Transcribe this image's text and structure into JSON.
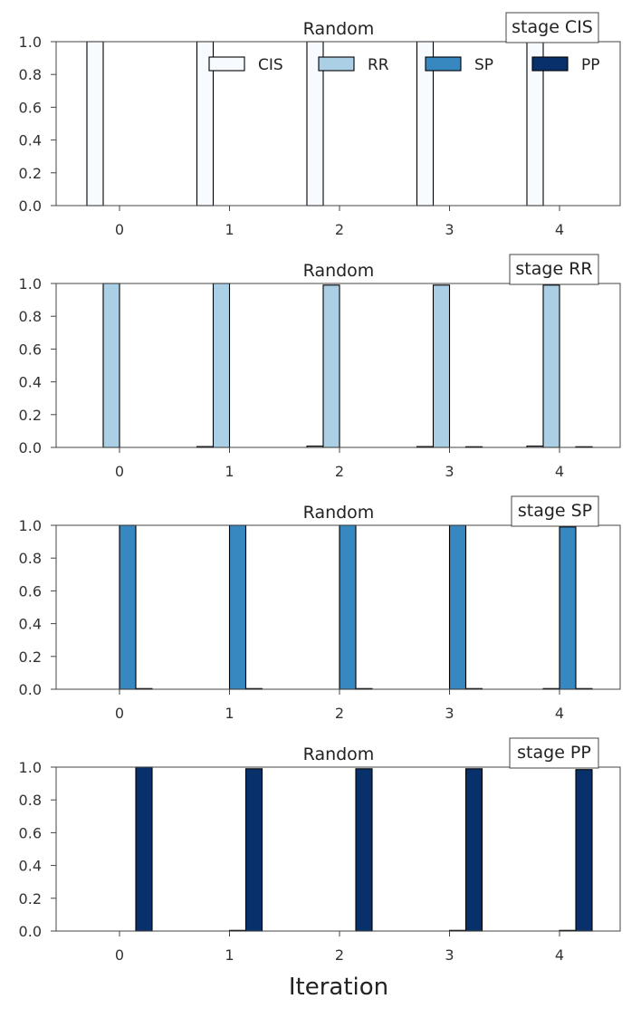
{
  "chart_data": [
    {
      "type": "bar",
      "title": "Random",
      "annotation": "stage CIS",
      "categories": [
        "0",
        "1",
        "2",
        "3",
        "4"
      ],
      "ylim": [
        0,
        1.0
      ],
      "yticks": [
        "0.0",
        "0.2",
        "0.4",
        "0.6",
        "0.8",
        "1.0"
      ],
      "grid": false,
      "legend_position": "top-right",
      "series": [
        {
          "name": "CIS",
          "color": "#f7fbff",
          "values": [
            1.0,
            1.0,
            1.0,
            1.0,
            1.0
          ]
        },
        {
          "name": "RR",
          "color": "#abd0e6",
          "values": [
            0,
            0,
            0,
            0,
            0
          ]
        },
        {
          "name": "SP",
          "color": "#3787c0",
          "values": [
            0,
            0,
            0,
            0,
            0
          ]
        },
        {
          "name": "PP",
          "color": "#08306b",
          "values": [
            0,
            0,
            0,
            0,
            0
          ]
        }
      ]
    },
    {
      "type": "bar",
      "title": "Random",
      "annotation": "stage RR",
      "categories": [
        "0",
        "1",
        "2",
        "3",
        "4"
      ],
      "ylim": [
        0,
        1.0
      ],
      "yticks": [
        "0.0",
        "0.2",
        "0.4",
        "0.6",
        "0.8",
        "1.0"
      ],
      "grid": false,
      "series": [
        {
          "name": "CIS",
          "color": "#f7fbff",
          "values": [
            0.0,
            0.005,
            0.008,
            0.005,
            0.008
          ]
        },
        {
          "name": "RR",
          "color": "#abd0e6",
          "values": [
            1.0,
            1.0,
            0.99,
            0.99,
            0.99
          ]
        },
        {
          "name": "SP",
          "color": "#3787c0",
          "values": [
            0,
            0,
            0,
            0,
            0
          ]
        },
        {
          "name": "PP",
          "color": "#08306b",
          "values": [
            0.0,
            0.0,
            0.0,
            0.004,
            0.004
          ]
        }
      ]
    },
    {
      "type": "bar",
      "title": "Random",
      "annotation": "stage SP",
      "categories": [
        "0",
        "1",
        "2",
        "3",
        "4"
      ],
      "ylim": [
        0,
        1.0
      ],
      "yticks": [
        "0.0",
        "0.2",
        "0.4",
        "0.6",
        "0.8",
        "1.0"
      ],
      "grid": false,
      "series": [
        {
          "name": "CIS",
          "color": "#f7fbff",
          "values": [
            0,
            0,
            0,
            0,
            0
          ]
        },
        {
          "name": "RR",
          "color": "#abd0e6",
          "values": [
            0.0,
            0.0,
            0.0,
            0.0,
            0.004
          ]
        },
        {
          "name": "SP",
          "color": "#3787c0",
          "values": [
            1.0,
            1.0,
            1.0,
            1.0,
            0.99
          ]
        },
        {
          "name": "PP",
          "color": "#08306b",
          "values": [
            0.004,
            0.004,
            0.004,
            0.004,
            0.004
          ]
        }
      ]
    },
    {
      "type": "bar",
      "title": "Random",
      "annotation": "stage PP",
      "categories": [
        "0",
        "1",
        "2",
        "3",
        "4"
      ],
      "ylim": [
        0,
        1.0
      ],
      "yticks": [
        "0.0",
        "0.2",
        "0.4",
        "0.6",
        "0.8",
        "1.0"
      ],
      "grid": false,
      "series": [
        {
          "name": "CIS",
          "color": "#f7fbff",
          "values": [
            0,
            0,
            0,
            0,
            0
          ]
        },
        {
          "name": "RR",
          "color": "#abd0e6",
          "values": [
            0,
            0,
            0,
            0,
            0
          ]
        },
        {
          "name": "SP",
          "color": "#3787c0",
          "values": [
            0.0,
            0.004,
            0.0,
            0.004,
            0.004
          ]
        },
        {
          "name": "PP",
          "color": "#08306b",
          "values": [
            1.0,
            0.99,
            0.99,
            0.99,
            0.985
          ]
        }
      ]
    }
  ],
  "figure": {
    "xlabel": "Iteration"
  }
}
